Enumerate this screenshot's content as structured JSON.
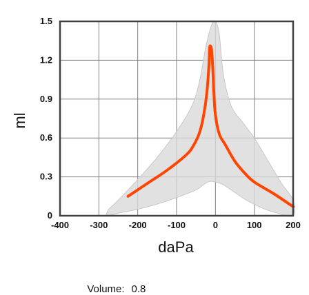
{
  "chart_data": {
    "type": "area",
    "xlabel": "daPa",
    "ylabel": "ml",
    "xlim": [
      -400,
      200
    ],
    "ylim": [
      0,
      1.5
    ],
    "x_ticks": [
      -400,
      -300,
      -200,
      -100,
      0,
      100,
      200
    ],
    "y_ticks": [
      0,
      0.3,
      0.6,
      0.9,
      1.2,
      1.5
    ],
    "x_tick_labels": [
      "-400",
      "-300",
      "-200",
      "-100",
      "0",
      "100",
      "200"
    ],
    "y_tick_labels": [
      "0",
      "0.3",
      "0.6",
      "0.9",
      "1.2",
      "1.5"
    ],
    "grid": true,
    "series": [
      {
        "kind": "band",
        "color": "#d9d9d9",
        "upper": [
          {
            "x": -275,
            "y": 0.05
          },
          {
            "x": -250,
            "y": 0.12
          },
          {
            "x": -200,
            "y": 0.28
          },
          {
            "x": -150,
            "y": 0.45
          },
          {
            "x": -100,
            "y": 0.65
          },
          {
            "x": -60,
            "y": 0.85
          },
          {
            "x": -40,
            "y": 1.05
          },
          {
            "x": -25,
            "y": 1.3
          },
          {
            "x": -10,
            "y": 1.47
          },
          {
            "x": 0,
            "y": 1.5
          },
          {
            "x": 10,
            "y": 1.4
          },
          {
            "x": 20,
            "y": 1.1
          },
          {
            "x": 40,
            "y": 0.85
          },
          {
            "x": 70,
            "y": 0.72
          },
          {
            "x": 100,
            "y": 0.6
          },
          {
            "x": 140,
            "y": 0.4
          },
          {
            "x": 170,
            "y": 0.25
          },
          {
            "x": 200,
            "y": 0.12
          }
        ],
        "lower": [
          {
            "x": 200,
            "y": 0.0
          },
          {
            "x": 160,
            "y": 0.02
          },
          {
            "x": 120,
            "y": 0.06
          },
          {
            "x": 80,
            "y": 0.12
          },
          {
            "x": 50,
            "y": 0.18
          },
          {
            "x": 20,
            "y": 0.24
          },
          {
            "x": 0,
            "y": 0.26
          },
          {
            "x": -20,
            "y": 0.26
          },
          {
            "x": -50,
            "y": 0.2
          },
          {
            "x": -100,
            "y": 0.14
          },
          {
            "x": -150,
            "y": 0.09
          },
          {
            "x": -200,
            "y": 0.05
          },
          {
            "x": -250,
            "y": 0.02
          },
          {
            "x": -280,
            "y": 0.0
          }
        ]
      },
      {
        "kind": "line",
        "color": "#ff4500",
        "points": [
          {
            "x": -225,
            "y": 0.15
          },
          {
            "x": -175,
            "y": 0.25
          },
          {
            "x": -125,
            "y": 0.35
          },
          {
            "x": -75,
            "y": 0.47
          },
          {
            "x": -55,
            "y": 0.55
          },
          {
            "x": -40,
            "y": 0.65
          },
          {
            "x": -30,
            "y": 0.78
          },
          {
            "x": -22,
            "y": 0.95
          },
          {
            "x": -17,
            "y": 1.15
          },
          {
            "x": -15,
            "y": 1.29
          },
          {
            "x": -13,
            "y": 1.31
          },
          {
            "x": -10,
            "y": 1.28
          },
          {
            "x": -7,
            "y": 1.15
          },
          {
            "x": -4,
            "y": 0.95
          },
          {
            "x": 0,
            "y": 0.78
          },
          {
            "x": 10,
            "y": 0.63
          },
          {
            "x": 25,
            "y": 0.55
          },
          {
            "x": 50,
            "y": 0.42
          },
          {
            "x": 75,
            "y": 0.33
          },
          {
            "x": 100,
            "y": 0.26
          },
          {
            "x": 150,
            "y": 0.17
          },
          {
            "x": 200,
            "y": 0.07
          }
        ]
      }
    ]
  },
  "footer": {
    "volume_label": "Volume:",
    "volume_value": "0.8"
  }
}
